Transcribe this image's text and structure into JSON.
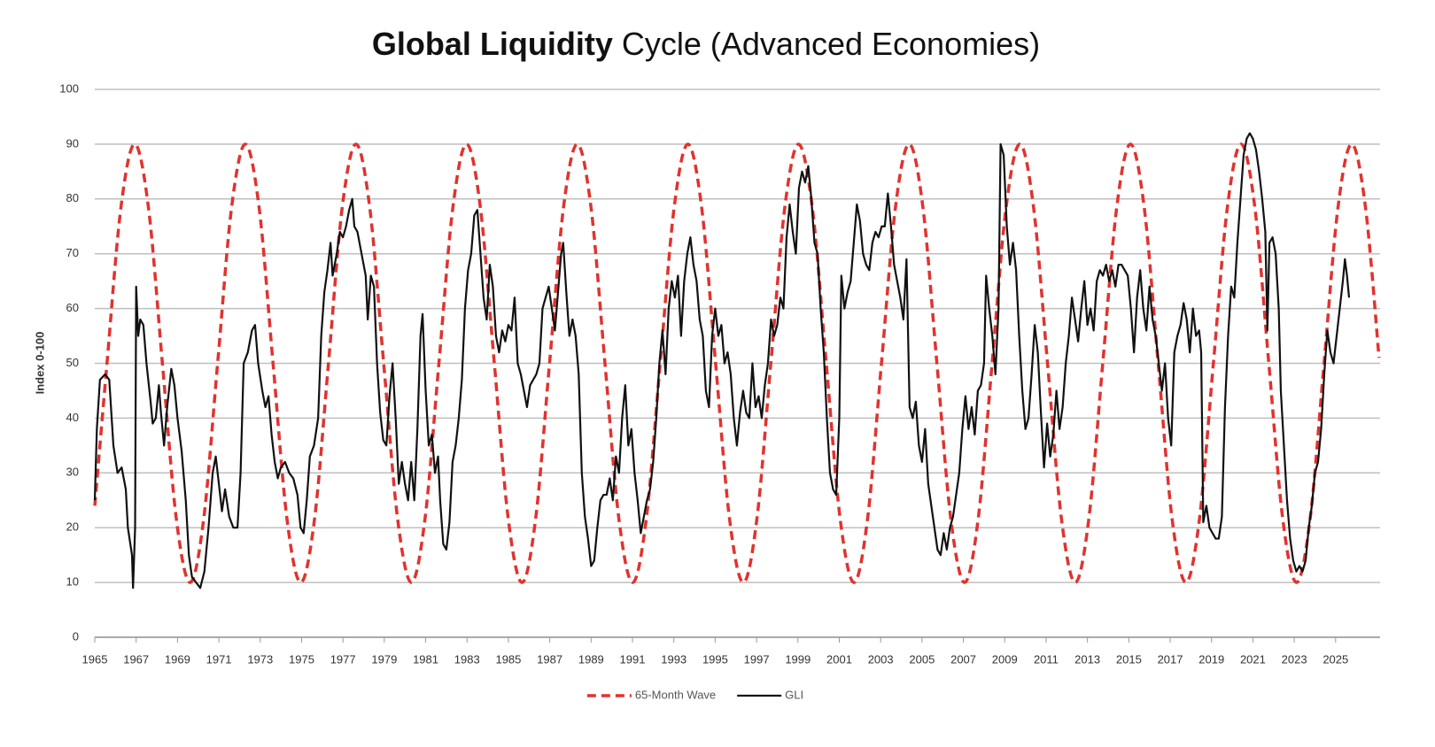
{
  "chart_data": {
    "type": "line",
    "title": [
      "Global Liquidity",
      "Cycle (Advanced Economies)"
    ],
    "y_label": "Index 0-100",
    "xlim": [
      1965,
      2027.15
    ],
    "xticks": [
      1965,
      1967,
      1969,
      1971,
      1973,
      1975,
      1977,
      1979,
      1981,
      1983,
      1985,
      1987,
      1989,
      1991,
      1993,
      1995,
      1997,
      1999,
      2001,
      2003,
      2005,
      2007,
      2009,
      2011,
      2013,
      2015,
      2017,
      2019,
      2021,
      2023,
      2025
    ],
    "ylim": [
      0,
      100
    ],
    "yticks": [
      0,
      10,
      20,
      30,
      40,
      50,
      60,
      70,
      80,
      90,
      100
    ],
    "grid": true,
    "legend": "bottom",
    "series": [
      {
        "name": "65-Month Wave",
        "color": "#e0332e",
        "dashed": true,
        "smooth": true,
        "x": [
          1965.0,
          1965.59,
          1966.26,
          1966.93,
          1967.6,
          1968.27,
          1968.94,
          1969.61,
          1970.27,
          1970.94,
          1971.61,
          1972.28,
          1972.95,
          1973.62,
          1974.29,
          1974.96,
          1975.63,
          1976.3,
          1976.96,
          1977.63,
          1978.3,
          1978.97,
          1979.64,
          1980.31,
          1980.97,
          1981.64,
          1982.31,
          1982.98,
          1983.65,
          1984.32,
          1984.99,
          1985.66,
          1986.32,
          1986.99,
          1987.66,
          1988.33,
          1989.0,
          1989.67,
          1990.34,
          1991.01,
          1991.67,
          1992.34,
          1993.01,
          1993.68,
          1994.35,
          1995.02,
          1995.69,
          1996.36,
          1997.02,
          1997.69,
          1998.36,
          1999.03,
          1999.7,
          2000.37,
          2001.04,
          2001.71,
          2002.37,
          2003.04,
          2003.71,
          2004.38,
          2005.05,
          2005.72,
          2006.39,
          2007.06,
          2007.72,
          2008.39,
          2009.06,
          2009.73,
          2010.4,
          2011.07,
          2011.74,
          2012.41,
          2013.07,
          2013.74,
          2014.41,
          2015.08,
          2015.75,
          2016.42,
          2017.09,
          2017.76,
          2018.42,
          2019.09,
          2019.76,
          2020.43,
          2021.1,
          2021.77,
          2022.44,
          2023.11,
          2023.77,
          2024.44,
          2025.11,
          2025.78,
          2026.45,
          2027.1
        ],
        "values": [
          24,
          50,
          78.3,
          90,
          78.3,
          50,
          21.7,
          10,
          21.7,
          50,
          78.3,
          90,
          78.3,
          50,
          21.7,
          10,
          21.7,
          50,
          78.3,
          90,
          78.3,
          50,
          21.7,
          10,
          21.7,
          50,
          78.3,
          90,
          78.3,
          50,
          21.7,
          10,
          21.7,
          50,
          78.3,
          90,
          78.3,
          50,
          21.7,
          10,
          21.7,
          50,
          78.3,
          90,
          78.3,
          50,
          21.7,
          10,
          21.7,
          50,
          78.3,
          90,
          78.3,
          50,
          21.7,
          10,
          21.7,
          50,
          78.3,
          90,
          78.3,
          50,
          21.7,
          10,
          21.7,
          50,
          78.3,
          90,
          78.3,
          50,
          21.7,
          10,
          21.7,
          50,
          78.3,
          90,
          78.3,
          50,
          21.7,
          10,
          21.7,
          50,
          78.3,
          90,
          78.3,
          50,
          21.7,
          10,
          21.7,
          50,
          78.3,
          90,
          78.3,
          51
        ]
      },
      {
        "name": "GLI",
        "color": "#111111",
        "dashed": false,
        "smooth": false,
        "x": [
          1965.0,
          1965.1,
          1965.25,
          1965.5,
          1965.7,
          1965.9,
          1966.1,
          1966.3,
          1966.5,
          1966.6,
          1966.8,
          1966.85,
          1966.95,
          1967.0,
          1967.1,
          1967.2,
          1967.35,
          1967.5,
          1967.7,
          1967.8,
          1967.95,
          1968.1,
          1968.2,
          1968.35,
          1968.5,
          1968.7,
          1968.85,
          1969.0,
          1969.2,
          1969.4,
          1969.55,
          1969.7,
          1969.9,
          1970.1,
          1970.3,
          1970.5,
          1970.7,
          1970.85,
          1971.0,
          1971.15,
          1971.3,
          1971.5,
          1971.7,
          1971.9,
          1972.05,
          1972.2,
          1972.4,
          1972.6,
          1972.75,
          1972.9,
          1973.1,
          1973.25,
          1973.4,
          1973.55,
          1973.7,
          1973.85,
          1974.0,
          1974.2,
          1974.4,
          1974.6,
          1974.8,
          1974.95,
          1975.1,
          1975.25,
          1975.4,
          1975.6,
          1975.8,
          1975.95,
          1976.1,
          1976.25,
          1976.4,
          1976.5,
          1976.7,
          1976.85,
          1977.0,
          1977.15,
          1977.3,
          1977.45,
          1977.55,
          1977.7,
          1977.9,
          1978.1,
          1978.2,
          1978.35,
          1978.5,
          1978.65,
          1978.8,
          1978.95,
          1979.1,
          1979.25,
          1979.4,
          1979.55,
          1979.7,
          1979.85,
          1980.0,
          1980.15,
          1980.3,
          1980.45,
          1980.6,
          1980.75,
          1980.85,
          1981.0,
          1981.15,
          1981.3,
          1981.45,
          1981.6,
          1981.7,
          1981.85,
          1982.0,
          1982.15,
          1982.3,
          1982.45,
          1982.6,
          1982.75,
          1982.9,
          1983.05,
          1983.2,
          1983.35,
          1983.5,
          1983.65,
          1983.8,
          1983.95,
          1984.1,
          1984.25,
          1984.4,
          1984.55,
          1984.7,
          1984.85,
          1985.0,
          1985.15,
          1985.3,
          1985.45,
          1985.6,
          1985.75,
          1985.9,
          1986.05,
          1986.2,
          1986.35,
          1986.5,
          1986.65,
          1986.8,
          1986.95,
          1987.1,
          1987.25,
          1987.4,
          1987.55,
          1987.65,
          1987.8,
          1987.95,
          1988.1,
          1988.25,
          1988.4,
          1988.55,
          1988.7,
          1988.85,
          1989.0,
          1989.15,
          1989.3,
          1989.45,
          1989.6,
          1989.75,
          1989.9,
          1990.05,
          1990.2,
          1990.35,
          1990.5,
          1990.65,
          1990.8,
          1990.95,
          1991.1,
          1991.25,
          1991.4,
          1991.55,
          1991.7,
          1991.85,
          1992.0,
          1992.15,
          1992.3,
          1992.45,
          1992.6,
          1992.75,
          1992.9,
          1993.05,
          1993.2,
          1993.35,
          1993.5,
          1993.65,
          1993.8,
          1993.95,
          1994.1,
          1994.25,
          1994.4,
          1994.55,
          1994.7,
          1994.85,
          1995.0,
          1995.15,
          1995.3,
          1995.45,
          1995.6,
          1995.75,
          1995.9,
          1996.05,
          1996.2,
          1996.35,
          1996.5,
          1996.65,
          1996.8,
          1996.95,
          1997.1,
          1997.25,
          1997.4,
          1997.55,
          1997.7,
          1997.85,
          1998.0,
          1998.15,
          1998.3,
          1998.45,
          1998.6,
          1998.75,
          1998.9,
          1999.05,
          1999.2,
          1999.35,
          1999.5,
          1999.65,
          1999.8,
          1999.95,
          2000.1,
          2000.25,
          2000.4,
          2000.55,
          2000.7,
          2000.85,
          2001.0,
          2001.1,
          2001.25,
          2001.4,
          2001.55,
          2001.7,
          2001.85,
          2002.0,
          2002.15,
          2002.3,
          2002.45,
          2002.6,
          2002.75,
          2002.9,
          2003.05,
          2003.2,
          2003.35,
          2003.5,
          2003.65,
          2003.8,
          2003.95,
          2004.1,
          2004.25,
          2004.4,
          2004.55,
          2004.7,
          2004.85,
          2005.0,
          2005.15,
          2005.3,
          2005.45,
          2005.6,
          2005.75,
          2005.9,
          2006.05,
          2006.2,
          2006.35,
          2006.5,
          2006.65,
          2006.8,
          2006.95,
          2007.1,
          2007.25,
          2007.4,
          2007.55,
          2007.7,
          2007.85,
          2008.0,
          2008.1,
          2008.25,
          2008.4,
          2008.55,
          2008.7,
          2008.8,
          2008.95,
          2009.1,
          2009.25,
          2009.4,
          2009.55,
          2009.7,
          2009.85,
          2010.0,
          2010.15,
          2010.3,
          2010.45,
          2010.6,
          2010.75,
          2010.9,
          2011.05,
          2011.2,
          2011.35,
          2011.5,
          2011.65,
          2011.8,
          2011.95,
          2012.1,
          2012.25,
          2012.4,
          2012.55,
          2012.7,
          2012.85,
          2013.0,
          2013.15,
          2013.3,
          2013.45,
          2013.6,
          2013.75,
          2013.9,
          2014.05,
          2014.2,
          2014.35,
          2014.5,
          2014.65,
          2014.8,
          2014.95,
          2015.1,
          2015.25,
          2015.4,
          2015.55,
          2015.7,
          2015.85,
          2016.0,
          2016.15,
          2016.3,
          2016.45,
          2016.6,
          2016.75,
          2016.9,
          2017.05,
          2017.2,
          2017.35,
          2017.5,
          2017.65,
          2017.8,
          2017.95,
          2018.1,
          2018.25,
          2018.4,
          2018.5,
          2018.6,
          2018.75,
          2018.9,
          2019.05,
          2019.2,
          2019.35,
          2019.5,
          2019.65,
          2019.8,
          2019.95,
          2020.1,
          2020.25,
          2020.4,
          2020.55,
          2020.7,
          2020.85,
          2021.0,
          2021.15,
          2021.3,
          2021.45,
          2021.6,
          2021.7,
          2021.8,
          2021.95,
          2022.1,
          2022.25,
          2022.35,
          2022.5,
          2022.65,
          2022.8,
          2022.95,
          2023.1,
          2023.25,
          2023.4,
          2023.55,
          2023.7,
          2023.85,
          2024.0,
          2024.15,
          2024.3,
          2024.45,
          2024.6,
          2024.75,
          2024.9,
          2025.05,
          2025.2,
          2025.35,
          2025.45,
          2025.55,
          2025.65
        ],
        "values": [
          25,
          38,
          47,
          48,
          47,
          35,
          30,
          31,
          27,
          20,
          15,
          9,
          20,
          64,
          55,
          58,
          57,
          50,
          43,
          39,
          40,
          46,
          41,
          35,
          42,
          49,
          46,
          40,
          34,
          25,
          15,
          11,
          10,
          9,
          12,
          20,
          30,
          33,
          28,
          23,
          27,
          22,
          20,
          20,
          30,
          50,
          52,
          56,
          57,
          50,
          45,
          42,
          44,
          37,
          32,
          29,
          31,
          32,
          30,
          29,
          26,
          20,
          19,
          25,
          33,
          35,
          40,
          55,
          63,
          67,
          72,
          66,
          70,
          74,
          73,
          75,
          78,
          80,
          75,
          74,
          70,
          66,
          58,
          66,
          64,
          50,
          41,
          36,
          35,
          44,
          50,
          40,
          28,
          32,
          28,
          25,
          32,
          25,
          38,
          55,
          59,
          45,
          35,
          37,
          30,
          33,
          25,
          17,
          16,
          21,
          32,
          35,
          40,
          47,
          60,
          67,
          70,
          77,
          78,
          70,
          62,
          58,
          68,
          64,
          55,
          52,
          56,
          54,
          57,
          56,
          62,
          50,
          48,
          45,
          42,
          46,
          47,
          48,
          50,
          60,
          62,
          64,
          60,
          56,
          63,
          70,
          72,
          63,
          55,
          58,
          55,
          48,
          30,
          22,
          18,
          13,
          14,
          20,
          25,
          26,
          26,
          29,
          25,
          33,
          30,
          40,
          46,
          35,
          38,
          30,
          25,
          19,
          22,
          25,
          27,
          32,
          40,
          50,
          56,
          48,
          60,
          65,
          62,
          66,
          55,
          65,
          70,
          73,
          68,
          65,
          58,
          55,
          45,
          42,
          55,
          60,
          55,
          57,
          50,
          52,
          48,
          40,
          35,
          41,
          45,
          41,
          40,
          50,
          42,
          44,
          40,
          46,
          50,
          58,
          55,
          57,
          62,
          60,
          73,
          79,
          74,
          70,
          82,
          85,
          83,
          86,
          80,
          72,
          70,
          60,
          52,
          40,
          30,
          27,
          26,
          40,
          66,
          60,
          63,
          65,
          72,
          79,
          76,
          70,
          68,
          67,
          72,
          74,
          73,
          75,
          75,
          81,
          75,
          68,
          65,
          62,
          58,
          69,
          42,
          40,
          43,
          35,
          32,
          38,
          28,
          24,
          20,
          16,
          15,
          19,
          16,
          20,
          22,
          26,
          30,
          38,
          44,
          38,
          42,
          37,
          45,
          46,
          50,
          66,
          60,
          55,
          48,
          60,
          90,
          88,
          75,
          68,
          72,
          67,
          55,
          45,
          38,
          40,
          48,
          57,
          52,
          41,
          31,
          39,
          33,
          37,
          45,
          38,
          42,
          50,
          55,
          62,
          58,
          54,
          60,
          65,
          57,
          60,
          56,
          65,
          67,
          66,
          68,
          65,
          67,
          64,
          68,
          68,
          67,
          66,
          60,
          52,
          62,
          67,
          60,
          56,
          64,
          58,
          55,
          50,
          45,
          50,
          40,
          35,
          52,
          55,
          57,
          61,
          58,
          52,
          60,
          55,
          56,
          52,
          21,
          24,
          20,
          19,
          18,
          18,
          22,
          42,
          55,
          64,
          62,
          72,
          80,
          88,
          91,
          92,
          91,
          89,
          85,
          80,
          74,
          56,
          72,
          73,
          70,
          60,
          45,
          35,
          25,
          18,
          14,
          12,
          13,
          12,
          14,
          20,
          24,
          30,
          32,
          38,
          48,
          56,
          52,
          50,
          55,
          60,
          65,
          69,
          66,
          62
        ]
      }
    ]
  }
}
